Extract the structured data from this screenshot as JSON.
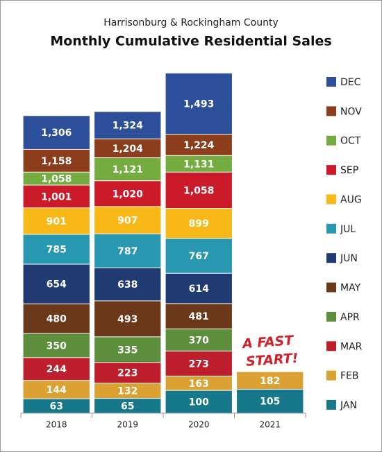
{
  "chart_data": {
    "type": "bar",
    "overlap": true,
    "subtitle": "Harrisonburg & Rockingham County",
    "title": "Monthly Cumulative Residential Sales",
    "categories": [
      "2018",
      "2019",
      "2020",
      "2021"
    ],
    "ylim": [
      0,
      1500
    ],
    "annotation": [
      "A FAST",
      "START!"
    ],
    "annotation_color": "#d0212b",
    "series": [
      {
        "name": "JAN",
        "color": "#17788b",
        "values": [
          63,
          65,
          100,
          105
        ]
      },
      {
        "name": "FEB",
        "color": "#dba233",
        "values": [
          144,
          132,
          163,
          182
        ]
      },
      {
        "name": "MAR",
        "color": "#bd1f2c",
        "values": [
          244,
          223,
          273,
          null
        ]
      },
      {
        "name": "APR",
        "color": "#5c8e3b",
        "values": [
          350,
          335,
          370,
          null
        ]
      },
      {
        "name": "MAY",
        "color": "#6b3919",
        "values": [
          480,
          493,
          481,
          null
        ]
      },
      {
        "name": "JUN",
        "color": "#203a72",
        "values": [
          654,
          638,
          614,
          null
        ]
      },
      {
        "name": "JUL",
        "color": "#2898b0",
        "values": [
          785,
          787,
          767,
          null
        ]
      },
      {
        "name": "AUG",
        "color": "#f8b817",
        "values": [
          901,
          907,
          899,
          null
        ]
      },
      {
        "name": "SEP",
        "color": "#cb1b2a",
        "values": [
          1001,
          1020,
          1058,
          null
        ],
        "value_labels": [
          "1,001",
          "1,020",
          "1,058",
          null
        ]
      },
      {
        "name": "OCT",
        "color": "#74ac40",
        "values": [
          1058,
          1121,
          1131,
          null
        ],
        "value_labels": [
          "1,058",
          "1,121",
          "1,131",
          null
        ]
      },
      {
        "name": "NOV",
        "color": "#8c3d1b",
        "values": [
          1158,
          1204,
          1224,
          null
        ],
        "value_labels": [
          "1,158",
          "1,204",
          "1,224",
          null
        ]
      },
      {
        "name": "DEC",
        "color": "#2d4f99",
        "values": [
          1306,
          1324,
          1493,
          null
        ],
        "value_labels": [
          "1,306",
          "1,324",
          "1,493",
          null
        ]
      }
    ]
  }
}
